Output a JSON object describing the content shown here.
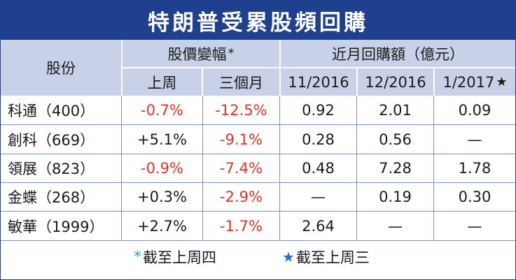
{
  "title": "特朗普受累股頻回購",
  "colors": {
    "header_bg": "#1f3f8f",
    "subheader_bg": "#c9d1e8",
    "negative": "#e0312b",
    "asterisk": "#2f9ad8",
    "star": "#1f6fcf"
  },
  "headers": {
    "stock": "股份",
    "price_change": "股價變幅",
    "price_change_mark": "*",
    "buyback": "近月回購額（億元）",
    "last_week": "上周",
    "three_months": "三個月",
    "m1": "11/2016",
    "m2": "12/2016",
    "m3": "1/2017",
    "m3_mark": "★"
  },
  "rows": [
    {
      "stock": "科通（400）",
      "week": "-0.7%",
      "three_m": "-12.5%",
      "m1": "0.92",
      "m2": "2.01",
      "m3": "0.09"
    },
    {
      "stock": "創科（669）",
      "week": "+5.1%",
      "three_m": "-9.1%",
      "m1": "0.28",
      "m2": "0.56",
      "m3": "—"
    },
    {
      "stock": "領展（823）",
      "week": "-0.9%",
      "three_m": "-7.4%",
      "m1": "0.48",
      "m2": "7.28",
      "m3": "1.78"
    },
    {
      "stock": "金蝶（268）",
      "week": "+0.3%",
      "three_m": "-2.9%",
      "m1": "—",
      "m2": "0.19",
      "m3": "0.30"
    },
    {
      "stock": "敏華（1999）",
      "week": "+2.7%",
      "three_m": "-1.7%",
      "m1": "2.64",
      "m2": "—",
      "m3": "—"
    }
  ],
  "notes": {
    "asterisk_mark": "*",
    "asterisk_text": "截至上周四",
    "star_mark": "★",
    "star_text": "截至上周三"
  }
}
